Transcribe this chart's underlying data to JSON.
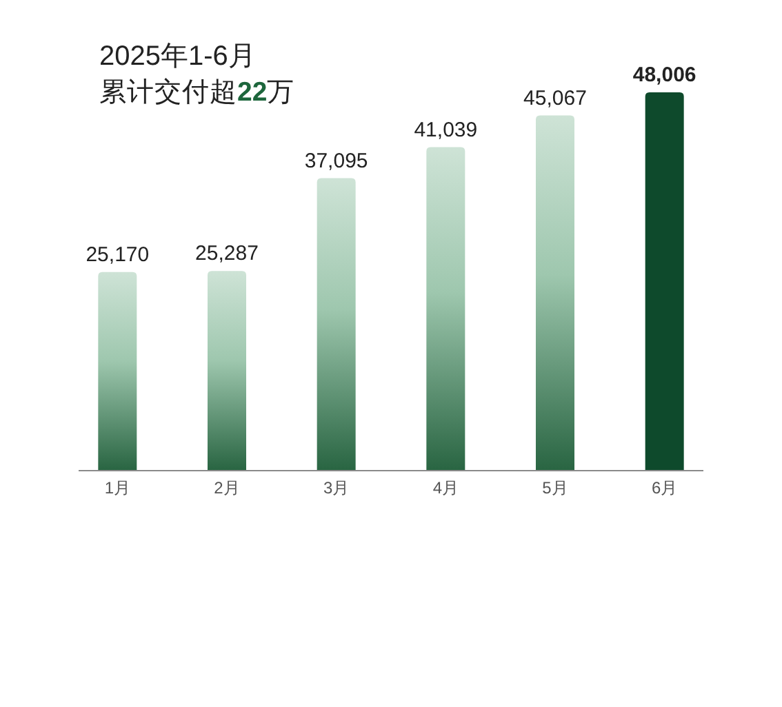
{
  "chart_data": {
    "type": "bar",
    "title": "2025年1-6月",
    "subtitle": "累计交付超22万",
    "categories": [
      "1月",
      "2月",
      "3月",
      "4月",
      "5月",
      "6月"
    ],
    "values": [
      25170,
      25287,
      37095,
      41039,
      45067,
      48006
    ],
    "value_labels": [
      "25,170",
      "25,287",
      "37,095",
      "41,039",
      "45,067",
      "48,006"
    ],
    "colors": [
      "#4f9a6c",
      "#4f9a6c",
      "#4f9a6c",
      "#4f9a6c",
      "#4f9a6c",
      "#0e4a2c"
    ]
  }
}
